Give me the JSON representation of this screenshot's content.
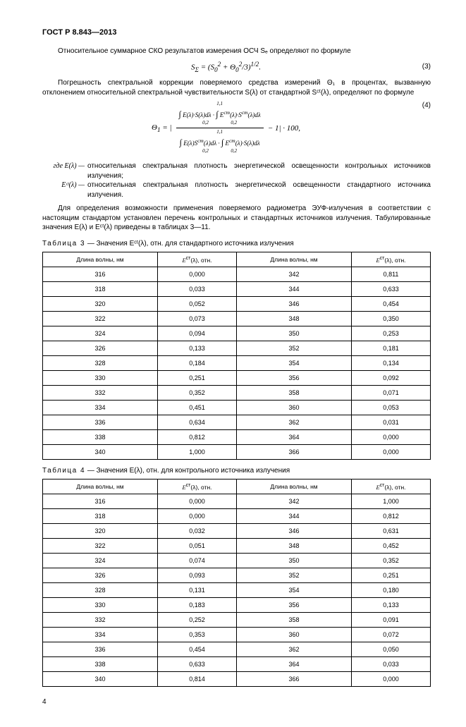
{
  "header": "ГОСТ Р 8.843—2013",
  "para1": "Относительное суммарное СКО результатов измерения ОСЧ Sₑ определяют по формуле",
  "formula1": "S<sub>Σ</sub> = (S<sub>0</sub><sup>2</sup> + Θ<sub>0</sub><sup>2</sup>/3)<sup>1/2</sup>.",
  "formula1_num": "(3)",
  "para2": "Погрешность спектральной коррекции поверяемого средства измерений Θ₁ в процентах, вызванную отклонением относительной спектральной чувствительности S(λ) от стандартной Sᶜᵗ(λ), определяют по формуле",
  "formula2_num": "(4)",
  "defs": [
    {
      "label": "где E(λ) —",
      "text": "относительная спектральная плотность энергетической освещенности контрольных источников излучения;"
    },
    {
      "label": "Eᶜᵗ(λ) —",
      "text": "относительная спектральная плотность энергетической освещенности стандартного источника излучения."
    }
  ],
  "para3": "Для определения возможности применения поверяемого радиометра ЭУФ-излучения в соответствии с настоящим стандартом установлен перечень контрольных и стандартных источников излучения. Табулированные значения E(λ) и Eᶜᵗ(λ) приведены в таблицах 3—11.",
  "table3": {
    "caption_spaced": "Таблица 3",
    "caption_rest": " — Значения Eᶜᵗ(λ), отн. для стандартного источника излучения",
    "headers": [
      "Длина волны, нм",
      "Eᶜᵗ(λ), отн.",
      "Длина волны, нм",
      "Eᶜᵗ(λ), отн."
    ],
    "rows": [
      [
        "316",
        "0,000",
        "342",
        "0,811"
      ],
      [
        "318",
        "0,033",
        "344",
        "0,633"
      ],
      [
        "320",
        "0,052",
        "346",
        "0,454"
      ],
      [
        "322",
        "0,073",
        "348",
        "0,350"
      ],
      [
        "324",
        "0,094",
        "350",
        "0,253"
      ],
      [
        "326",
        "0,133",
        "352",
        "0,181"
      ],
      [
        "328",
        "0,184",
        "354",
        "0,134"
      ],
      [
        "330",
        "0,251",
        "356",
        "0,092"
      ],
      [
        "332",
        "0,352",
        "358",
        "0,071"
      ],
      [
        "334",
        "0,451",
        "360",
        "0,053"
      ],
      [
        "336",
        "0,634",
        "362",
        "0,031"
      ],
      [
        "338",
        "0,812",
        "364",
        "0,000"
      ],
      [
        "340",
        "1,000",
        "366",
        "0,000"
      ]
    ]
  },
  "table4": {
    "caption_spaced": "Таблица 4",
    "caption_rest": " — Значения E(λ), отн. для контрольного источника излучения",
    "headers": [
      "Длина волны, нм",
      "Eᶜᵗ(λ), отн.",
      "Длина волны, нм",
      "Eᶜᵗ(λ), отн."
    ],
    "rows": [
      [
        "316",
        "0,000",
        "342",
        "1,000"
      ],
      [
        "318",
        "0,000",
        "344",
        "0,812"
      ],
      [
        "320",
        "0,032",
        "346",
        "0,631"
      ],
      [
        "322",
        "0,051",
        "348",
        "0,452"
      ],
      [
        "324",
        "0,074",
        "350",
        "0,352"
      ],
      [
        "326",
        "0,093",
        "352",
        "0,251"
      ],
      [
        "328",
        "0,131",
        "354",
        "0,180"
      ],
      [
        "330",
        "0,183",
        "356",
        "0,133"
      ],
      [
        "332",
        "0,252",
        "358",
        "0,091"
      ],
      [
        "334",
        "0,353",
        "360",
        "0,072"
      ],
      [
        "336",
        "0,454",
        "362",
        "0,050"
      ],
      [
        "338",
        "0,633",
        "364",
        "0,033"
      ],
      [
        "340",
        "0,814",
        "366",
        "0,000"
      ]
    ]
  },
  "page_num": "4",
  "table_style": {
    "border_color": "#000000",
    "font_size": 9,
    "header_font_size": 8.5,
    "col_widths": [
      "25%",
      "25%",
      "25%",
      "25%"
    ]
  }
}
